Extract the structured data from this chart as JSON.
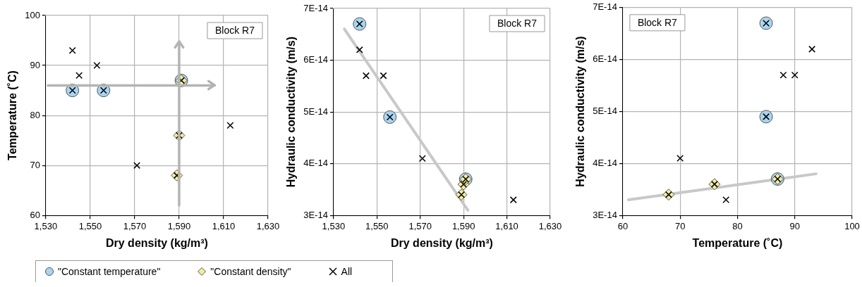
{
  "chart_data": [
    {
      "type": "scatter",
      "xlabel": "Dry density (kg/m³)",
      "ylabel": "Temperature (˚C)",
      "annotations": [
        "Block R7"
      ],
      "xlim": [
        1530,
        1630
      ],
      "ylim": [
        60,
        100
      ],
      "xticks": [
        {
          "value": 1530,
          "label": "1,530"
        },
        {
          "value": 1550,
          "label": "1,550"
        },
        {
          "value": 1570,
          "label": "1,570"
        },
        {
          "value": 1590,
          "label": "1,590"
        },
        {
          "value": 1610,
          "label": "1,610"
        },
        {
          "value": 1630,
          "label": "1,630"
        }
      ],
      "yticks": [
        60,
        70,
        80,
        90,
        100
      ],
      "grid": true,
      "legend": "bottom",
      "ref_lines": [
        {
          "axis": "y",
          "value": 86,
          "color": "#b4b4b4"
        },
        {
          "axis": "x",
          "value": 1590,
          "color": "#b4b4b4"
        }
      ],
      "series": [
        {
          "name": "\"Constant temperature\"",
          "color": "#a9d5f0",
          "marker": "circle",
          "x": [
            1542,
            1556,
            1591
          ],
          "values": [
            85,
            85,
            87
          ]
        },
        {
          "name": "\"Constant density\"",
          "color": "#f4eba0",
          "marker": "diamond",
          "x": [
            1589,
            1590,
            1591
          ],
          "values": [
            68,
            76,
            87
          ]
        },
        {
          "name": "All",
          "color": "#000000",
          "marker": "cross",
          "x": [
            1542,
            1545,
            1553,
            1542,
            1556,
            1571,
            1591,
            1590,
            1589,
            1613
          ],
          "values": [
            93,
            88,
            90,
            85,
            85,
            70,
            87,
            76,
            68,
            78
          ]
        }
      ]
    },
    {
      "type": "scatter",
      "xlabel": "Dry density (kg/m³)",
      "ylabel": "Hydraulic conductivity (m/s)",
      "annotations": [
        "Block R7"
      ],
      "xlim": [
        1530,
        1630
      ],
      "ylim": [
        3e-14,
        7e-14
      ],
      "xticks": [
        {
          "value": 1530,
          "label": "1,530"
        },
        {
          "value": 1550,
          "label": "1,550"
        },
        {
          "value": 1570,
          "label": "1,570"
        },
        {
          "value": 1590,
          "label": "1,590"
        },
        {
          "value": 1610,
          "label": "1,610"
        },
        {
          "value": 1630,
          "label": "1,630"
        }
      ],
      "yticks": [
        {
          "value": 3e-14,
          "label": "3E-14"
        },
        {
          "value": 4e-14,
          "label": "4E-14"
        },
        {
          "value": 5e-14,
          "label": "5E-14"
        },
        {
          "value": 6e-14,
          "label": "6E-14"
        },
        {
          "value": 7e-14,
          "label": "7E-14"
        }
      ],
      "grid": true,
      "series": [
        {
          "type": "line",
          "color": "#c8c8c8",
          "marker": "none",
          "x": [
            1535,
            1592
          ],
          "values": [
            6.6e-14,
            3.1e-14
          ]
        },
        {
          "color": "#a9d5f0",
          "marker": "circle",
          "x": [
            1542,
            1556,
            1591
          ],
          "values": [
            6.7e-14,
            4.9e-14,
            3.7e-14
          ]
        },
        {
          "color": "#f4eba0",
          "marker": "diamond",
          "x": [
            1589,
            1590,
            1591
          ],
          "values": [
            3.4e-14,
            3.6e-14,
            3.7e-14
          ]
        },
        {
          "color": "#000000",
          "marker": "cross",
          "x": [
            1542,
            1545,
            1553,
            1542,
            1556,
            1571,
            1591,
            1590,
            1589,
            1613
          ],
          "values": [
            6.2e-14,
            5.7e-14,
            5.7e-14,
            6.7e-14,
            4.9e-14,
            4.1e-14,
            3.7e-14,
            3.6e-14,
            3.4e-14,
            3.3e-14
          ]
        }
      ]
    },
    {
      "type": "scatter",
      "xlabel": "Temperature (˚C)",
      "ylabel": "Hydraulic conductivity (m/s)",
      "annotations": [
        "Block R7"
      ],
      "xlim": [
        60,
        100
      ],
      "ylim": [
        3e-14,
        7e-14
      ],
      "xticks": [
        60,
        70,
        80,
        90,
        100
      ],
      "yticks": [
        {
          "value": 3e-14,
          "label": "3E-14"
        },
        {
          "value": 4e-14,
          "label": "4E-14"
        },
        {
          "value": 5e-14,
          "label": "5E-14"
        },
        {
          "value": 6e-14,
          "label": "6E-14"
        },
        {
          "value": 7e-14,
          "label": "7E-14"
        }
      ],
      "grid": true,
      "series": [
        {
          "type": "line",
          "color": "#c8c8c8",
          "marker": "none",
          "x": [
            61,
            93.7
          ],
          "values": [
            3.3e-14,
            3.8e-14
          ]
        },
        {
          "color": "#a9d5f0",
          "marker": "circle",
          "x": [
            85,
            85,
            87
          ],
          "values": [
            6.7e-14,
            4.9e-14,
            3.7e-14
          ]
        },
        {
          "color": "#f4eba0",
          "marker": "diamond",
          "x": [
            68,
            76,
            87
          ],
          "values": [
            3.4e-14,
            3.6e-14,
            3.7e-14
          ]
        },
        {
          "color": "#000000",
          "marker": "cross",
          "x": [
            93,
            88,
            90,
            85,
            85,
            70,
            87,
            76,
            68,
            78
          ],
          "values": [
            6.2e-14,
            5.7e-14,
            5.7e-14,
            6.7e-14,
            4.9e-14,
            4.1e-14,
            3.7e-14,
            3.6e-14,
            3.4e-14,
            3.3e-14
          ]
        }
      ]
    }
  ]
}
